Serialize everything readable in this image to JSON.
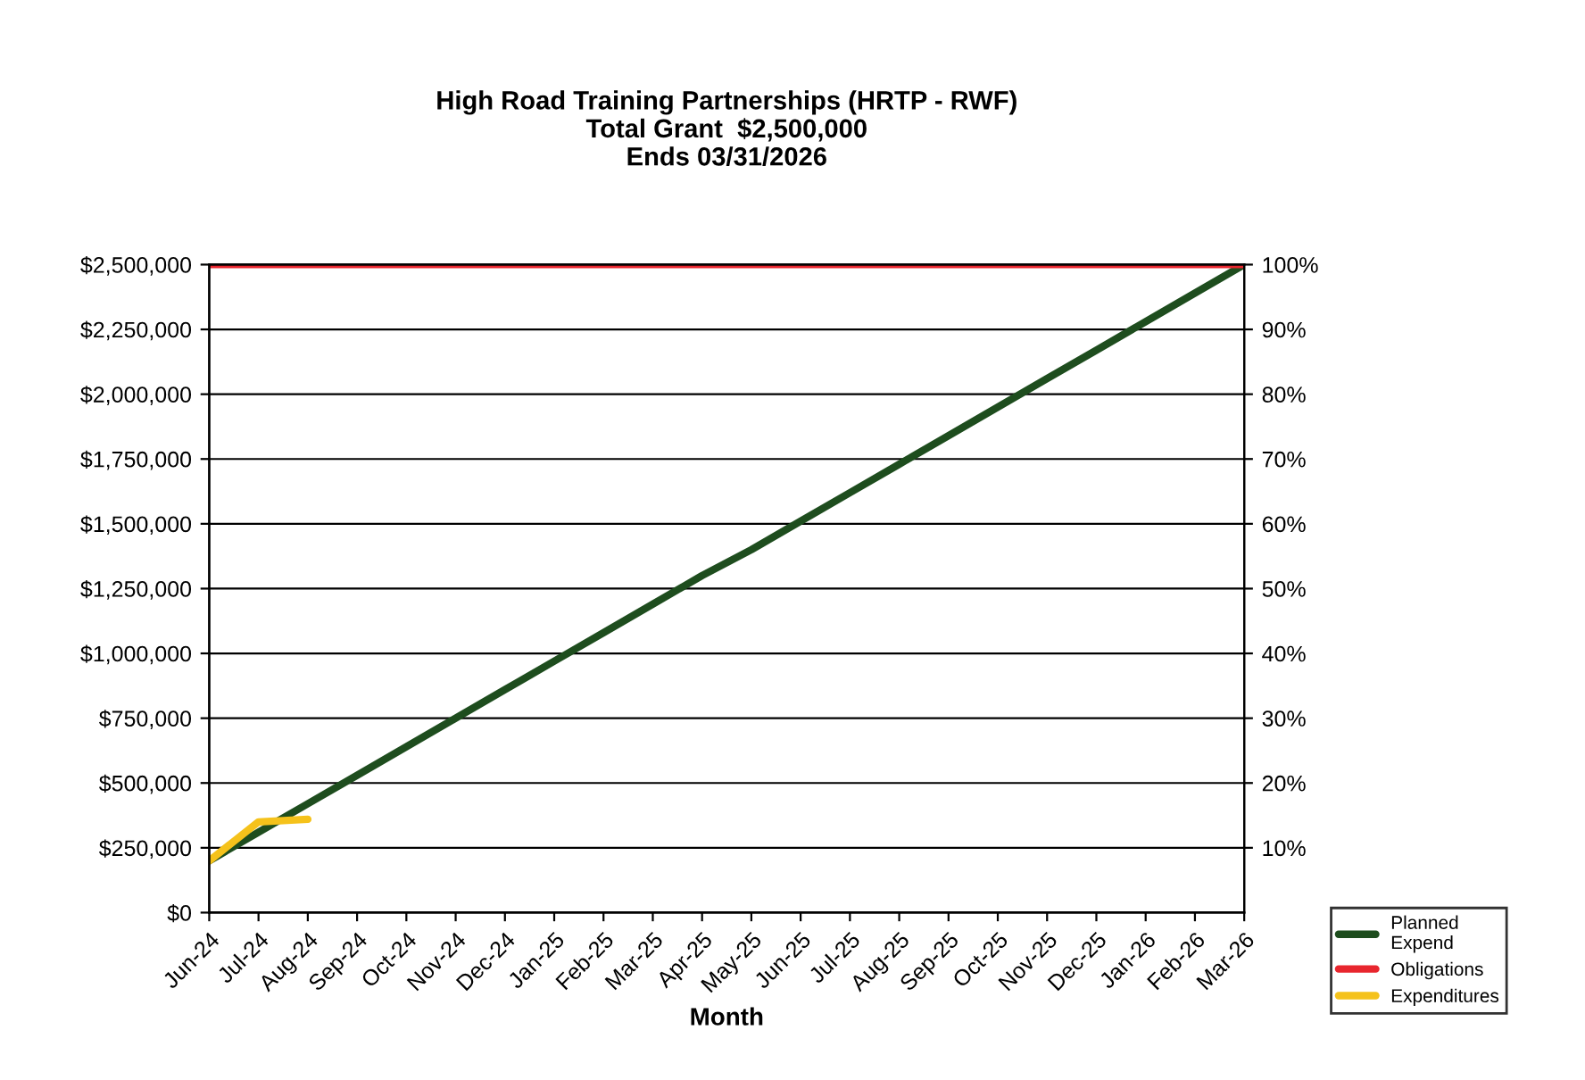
{
  "chart_data": {
    "type": "line",
    "title": "High Road Training Partnerships (HRTP - RWF)\nTotal Grant  $2,500,000\nEnds 03/31/2026",
    "xlabel": "Month",
    "categories": [
      "Jun-24",
      "Jul-24",
      "Aug-24",
      "Sep-24",
      "Oct-24",
      "Nov-24",
      "Dec-24",
      "Jan-25",
      "Feb-25",
      "Mar-25",
      "Apr-25",
      "May-25",
      "Jun-25",
      "Jul-25",
      "Aug-25",
      "Sep-25",
      "Oct-25",
      "Nov-25",
      "Dec-25",
      "Jan-26",
      "Feb-26",
      "Mar-26"
    ],
    "series": [
      {
        "name": "Planned\nExpend",
        "color": "#1e4d1e",
        "values": [
          200000,
          310000,
          420000,
          530000,
          640000,
          750000,
          860000,
          970000,
          1080000,
          1190000,
          1300000,
          1400000,
          1510000,
          1620000,
          1730000,
          1840000,
          1950000,
          2060000,
          2170000,
          2280000,
          2390000,
          2500000
        ]
      },
      {
        "name": "Obligations",
        "color": "#e8262e",
        "values": [
          2500000,
          2500000,
          2500000,
          2500000,
          2500000,
          2500000,
          2500000,
          2500000,
          2500000,
          2500000,
          2500000,
          2500000,
          2500000,
          2500000,
          2500000,
          2500000,
          2500000,
          2500000,
          2500000,
          2500000,
          2500000,
          2500000
        ]
      },
      {
        "name": "Expenditures",
        "color": "#f5c21b",
        "values": [
          200000,
          350000,
          360000,
          null,
          null,
          null,
          null,
          null,
          null,
          null,
          null,
          null,
          null,
          null,
          null,
          null,
          null,
          null,
          null,
          null,
          null,
          null
        ]
      }
    ],
    "ylim": [
      0,
      2500000
    ],
    "yticks": [
      {
        "value": 0,
        "label": "$0"
      },
      {
        "value": 250000,
        "label": "$250,000"
      },
      {
        "value": 500000,
        "label": "$500,000"
      },
      {
        "value": 750000,
        "label": "$750,000"
      },
      {
        "value": 1000000,
        "label": "$1,000,000"
      },
      {
        "value": 1250000,
        "label": "$1,250,000"
      },
      {
        "value": 1500000,
        "label": "$1,500,000"
      },
      {
        "value": 1750000,
        "label": "$1,750,000"
      },
      {
        "value": 2000000,
        "label": "$2,000,000"
      },
      {
        "value": 2250000,
        "label": "$2,250,000"
      },
      {
        "value": 2500000,
        "label": "$2,500,000"
      }
    ],
    "y2lim": [
      0,
      100
    ],
    "y2ticks": [
      {
        "value": 10,
        "label": "10%"
      },
      {
        "value": 20,
        "label": "20%"
      },
      {
        "value": 30,
        "label": "30%"
      },
      {
        "value": 40,
        "label": "40%"
      },
      {
        "value": 50,
        "label": "50%"
      },
      {
        "value": 60,
        "label": "60%"
      },
      {
        "value": 70,
        "label": "70%"
      },
      {
        "value": 80,
        "label": "80%"
      },
      {
        "value": 90,
        "label": "90%"
      },
      {
        "value": 100,
        "label": "100%"
      }
    ],
    "grid": "y",
    "legend": "bottom right",
    "marker": "none",
    "line_style": "solid"
  }
}
